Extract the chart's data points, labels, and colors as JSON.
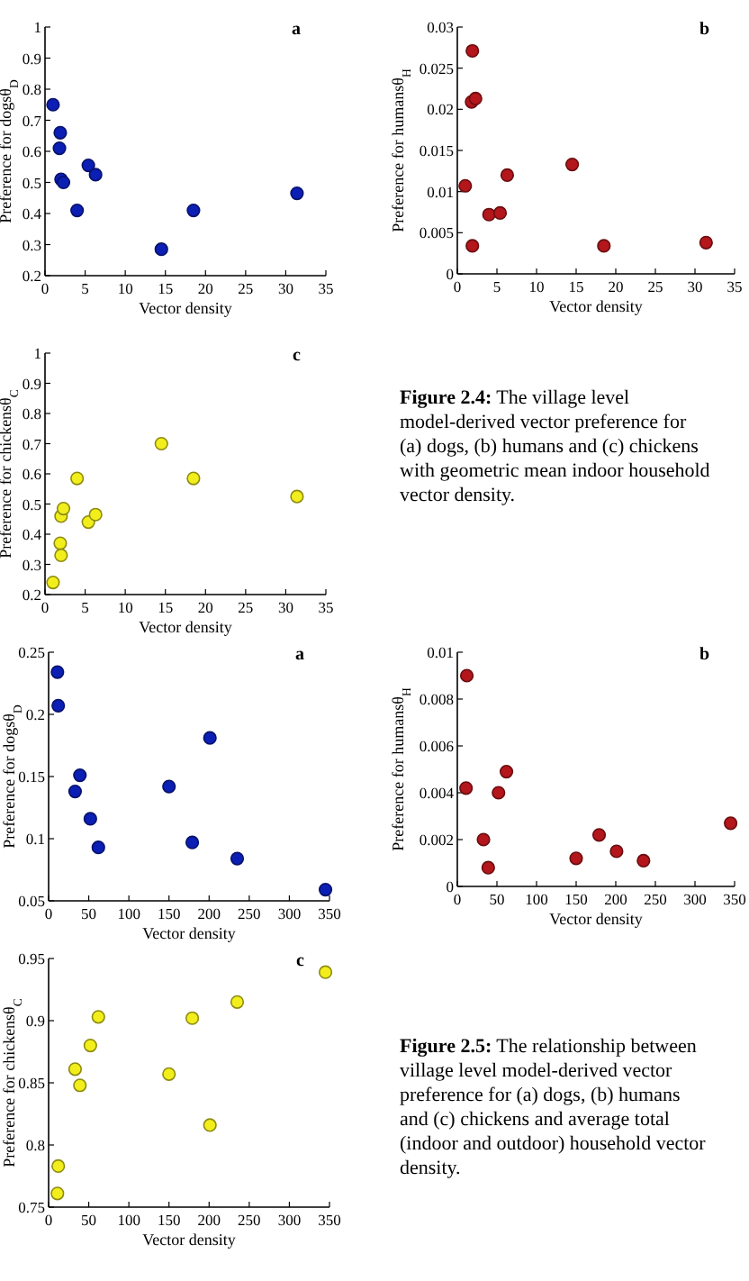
{
  "chart_data": [
    {
      "type": "scatter",
      "xlabel": "Vector density",
      "ylabel": "Preference for dogsθ$_{D}$",
      "annotations": [
        "a"
      ],
      "xlim": [
        0,
        35
      ],
      "xticks": [
        0,
        5,
        10,
        15,
        20,
        25,
        30,
        35
      ],
      "ylim": [
        0.2,
        1
      ],
      "yticks": [
        0.2,
        0.3,
        0.4,
        0.5,
        0.6,
        0.7,
        0.8,
        0.9,
        1
      ],
      "marker": "circle",
      "grid": false,
      "series": [
        {
          "color": "#0b1fb4",
          "x": [
            1.0,
            1.9,
            1.8,
            2.0,
            2.3,
            4.0,
            5.4,
            6.3,
            14.5,
            18.5,
            31.4
          ],
          "values": [
            0.75,
            0.66,
            0.61,
            0.51,
            0.5,
            0.41,
            0.555,
            0.525,
            0.285,
            0.41,
            0.465
          ]
        }
      ]
    },
    {
      "type": "scatter",
      "xlabel": "Vector density",
      "ylabel": "Preference for humansθ$_{H}$",
      "annotations": [
        "b"
      ],
      "xlim": [
        0,
        35
      ],
      "xticks": [
        0,
        5,
        10,
        15,
        20,
        25,
        30,
        35
      ],
      "ylim": [
        0,
        0.03
      ],
      "yticks": [
        0,
        0.005,
        0.01,
        0.015,
        0.02,
        0.025,
        0.03
      ],
      "marker": "circle",
      "grid": false,
      "series": [
        {
          "color": "#b3161b",
          "x": [
            1.0,
            1.9,
            1.8,
            2.3,
            1.9,
            4.0,
            5.4,
            6.3,
            14.5,
            18.5,
            31.4
          ],
          "values": [
            0.0107,
            0.0271,
            0.0209,
            0.0213,
            0.0034,
            0.0072,
            0.0074,
            0.012,
            0.0133,
            0.0034,
            0.0038
          ]
        }
      ]
    },
    {
      "type": "scatter",
      "xlabel": "Vector density",
      "ylabel": "Preference for chickensθ$_{C}$",
      "annotations": [
        "c",
        "Figure 2.4: The village level model-derived vector preference for (a) dogs, (b) humans and (c) chickens with geometric mean indoor household vector density."
      ],
      "xlim": [
        0,
        35
      ],
      "xticks": [
        0,
        5,
        10,
        15,
        20,
        25,
        30,
        35
      ],
      "ylim": [
        0.2,
        1
      ],
      "yticks": [
        0.2,
        0.3,
        0.4,
        0.5,
        0.6,
        0.7,
        0.8,
        0.9,
        1
      ],
      "marker": "circle",
      "grid": false,
      "series": [
        {
          "color": "#f2ee1c",
          "x": [
            1.0,
            1.9,
            2.0,
            2.0,
            2.3,
            4.0,
            5.4,
            6.3,
            14.5,
            18.5,
            31.4
          ],
          "values": [
            0.24,
            0.37,
            0.33,
            0.46,
            0.485,
            0.585,
            0.44,
            0.465,
            0.7,
            0.585,
            0.525
          ]
        }
      ]
    },
    {
      "type": "scatter",
      "xlabel": "Vector density",
      "ylabel": "Preference for dogsθ$_{D}$",
      "annotations": [
        "a"
      ],
      "xlim": [
        0,
        350
      ],
      "xticks": [
        0,
        50,
        100,
        150,
        200,
        250,
        300,
        350
      ],
      "ylim": [
        0.05,
        0.25
      ],
      "yticks": [
        0.05,
        0.1,
        0.15,
        0.2,
        0.25
      ],
      "marker": "circle",
      "grid": false,
      "series": [
        {
          "color": "#0b1fb4",
          "x": [
            11,
            12,
            33,
            39,
            52,
            62,
            150,
            179,
            201,
            235,
            345
          ],
          "values": [
            0.234,
            0.207,
            0.138,
            0.151,
            0.116,
            0.093,
            0.142,
            0.097,
            0.181,
            0.084,
            0.059
          ]
        }
      ]
    },
    {
      "type": "scatter",
      "xlabel": "Vector density",
      "ylabel": "Preference for humansθ$_{H}$",
      "annotations": [
        "b"
      ],
      "xlim": [
        0,
        350
      ],
      "xticks": [
        0,
        50,
        100,
        150,
        200,
        250,
        300,
        350
      ],
      "ylim": [
        0,
        0.01
      ],
      "yticks": [
        0,
        0.002,
        0.004,
        0.006,
        0.008,
        0.01
      ],
      "marker": "circle",
      "grid": false,
      "series": [
        {
          "color": "#b3161b",
          "x": [
            12,
            11,
            33,
            39,
            52,
            62,
            150,
            179,
            201,
            235,
            345
          ],
          "values": [
            0.009,
            0.0042,
            0.002,
            0.0008,
            0.004,
            0.0049,
            0.0012,
            0.0022,
            0.0015,
            0.0011,
            0.0027
          ]
        }
      ]
    },
    {
      "type": "scatter",
      "xlabel": "Vector density",
      "ylabel": "Preference for chickensθ$_{C}$",
      "annotations": [
        "c",
        "Figure 2.5: The relationship between village level model-derived vector preference for (a) dogs, (b) humans and (c) chickens and average total (indoor and outdoor) household vector density."
      ],
      "xlim": [
        0,
        350
      ],
      "xticks": [
        0,
        50,
        100,
        150,
        200,
        250,
        300,
        350
      ],
      "ylim": [
        0.75,
        0.95
      ],
      "yticks": [
        0.75,
        0.8,
        0.85,
        0.9,
        0.95
      ],
      "marker": "circle",
      "grid": false,
      "series": [
        {
          "color": "#f2ee1c",
          "x": [
            11,
            12,
            33,
            39,
            52,
            62,
            150,
            179,
            201,
            235,
            345
          ],
          "values": [
            0.761,
            0.783,
            0.861,
            0.848,
            0.88,
            0.903,
            0.857,
            0.902,
            0.816,
            0.915,
            0.939
          ]
        }
      ]
    }
  ]
}
